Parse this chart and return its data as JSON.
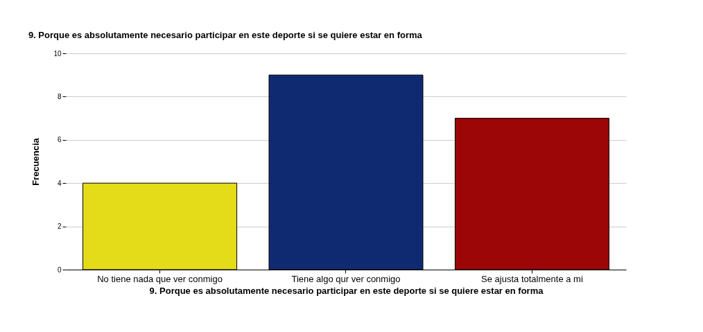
{
  "chart_data": {
    "type": "bar",
    "title": "9. Porque es absolutamente necesario participar en este deporte si se quiere estar en forma",
    "xlabel": "9. Porque es absolutamente necesario participar en este deporte si se quiere estar en forma",
    "ylabel": "Frecuencia",
    "categories": [
      "No tiene nada que ver conmigo",
      "Tiene algo qur ver conmigo",
      "Se ajusta totalmente a mi"
    ],
    "values": [
      4,
      9,
      7
    ],
    "colors": [
      "#e4dc18",
      "#102a72",
      "#9c0606"
    ],
    "ylim": [
      0,
      10
    ],
    "yticks": [
      0,
      2,
      4,
      6,
      8,
      10
    ],
    "grid": "y"
  }
}
